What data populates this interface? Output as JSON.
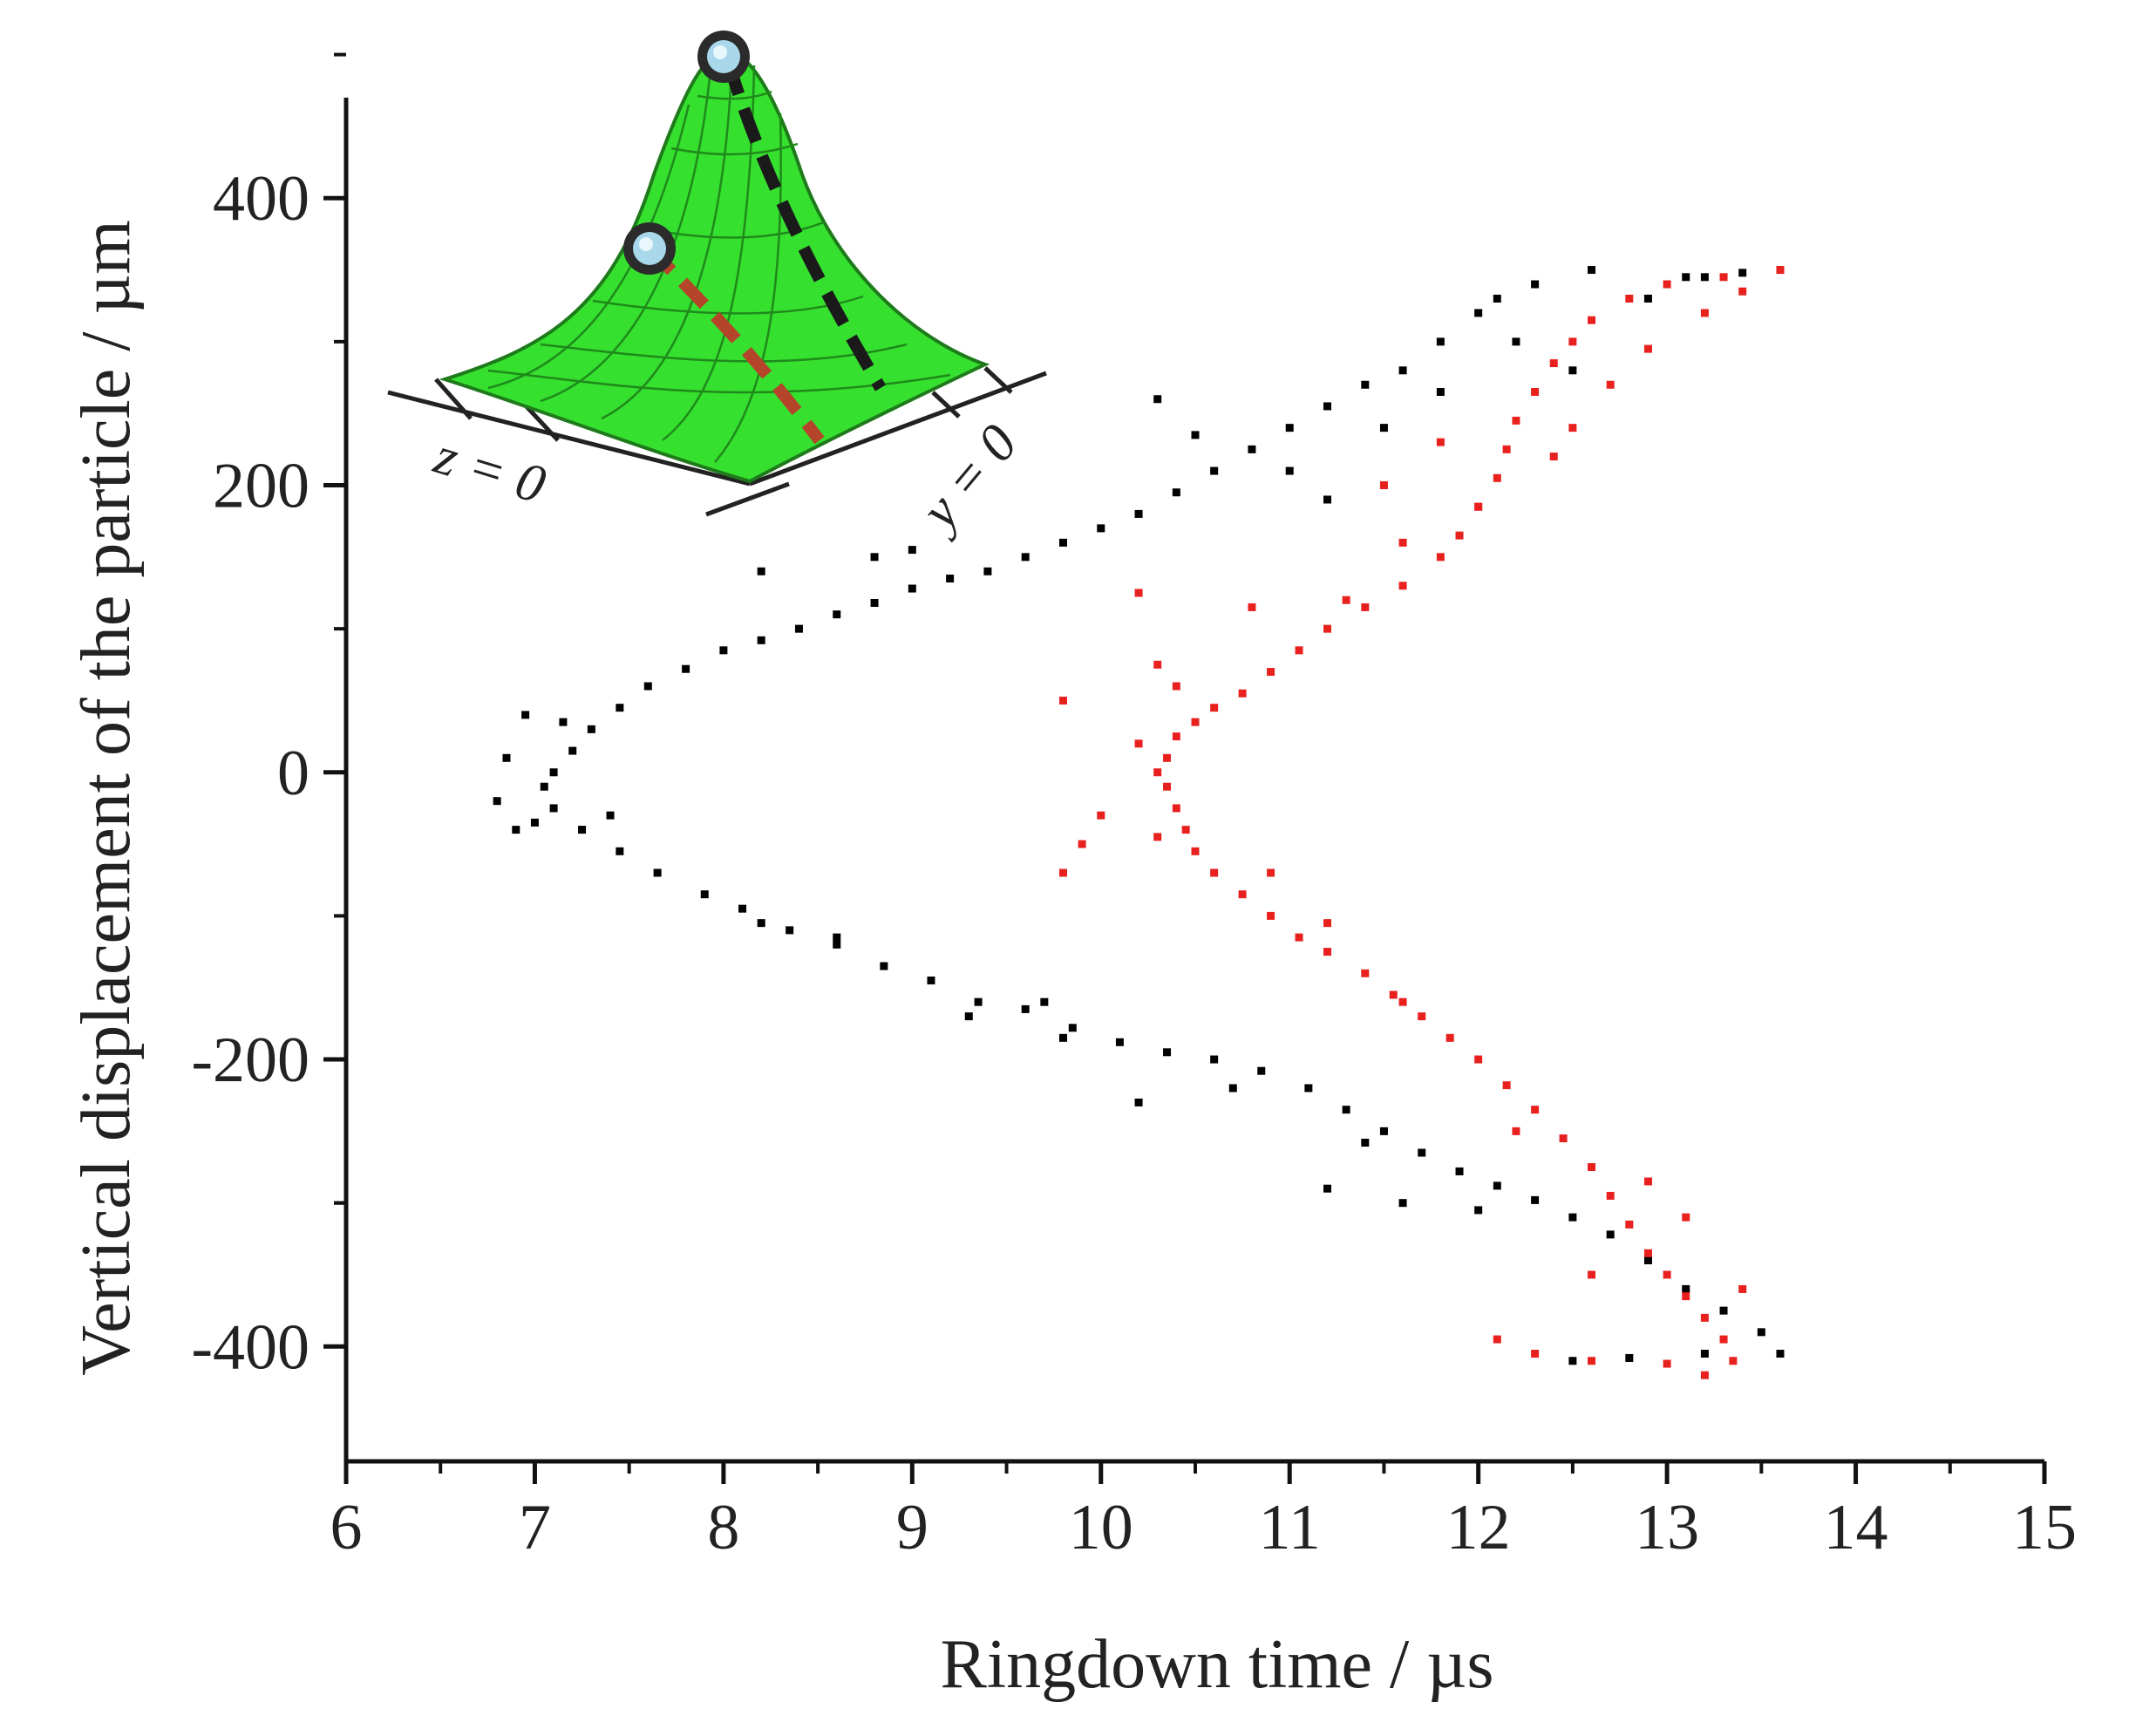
{
  "chart_data": {
    "type": "scatter",
    "title": "",
    "xlabel": "Ringdown time / µs",
    "ylabel": "Vertical displacement of the particle / µm",
    "xlim": [
      6,
      15
    ],
    "ylim": [
      -480,
      470
    ],
    "x_ticks": [
      6,
      7,
      8,
      9,
      10,
      11,
      12,
      13,
      14,
      15
    ],
    "y_ticks": [
      -400,
      -200,
      0,
      200,
      400
    ],
    "grid": false,
    "legend": "none",
    "series": [
      {
        "color": "#000000",
        "marker": "square/triangle",
        "points": [
          [
            13.6,
            350
          ],
          [
            13.4,
            348
          ],
          [
            13.2,
            345
          ],
          [
            12.6,
            350
          ],
          [
            12.3,
            340
          ],
          [
            12.1,
            330
          ],
          [
            12.0,
            320
          ],
          [
            11.8,
            300
          ],
          [
            11.6,
            280
          ],
          [
            11.4,
            270
          ],
          [
            11.2,
            255
          ],
          [
            11.0,
            240
          ],
          [
            10.8,
            225
          ],
          [
            10.6,
            210
          ],
          [
            10.4,
            195
          ],
          [
            10.2,
            180
          ],
          [
            10.0,
            170
          ],
          [
            9.8,
            160
          ],
          [
            9.6,
            150
          ],
          [
            9.4,
            140
          ],
          [
            9.2,
            135
          ],
          [
            9.0,
            128
          ],
          [
            8.8,
            118
          ],
          [
            8.6,
            110
          ],
          [
            8.4,
            100
          ],
          [
            8.2,
            92
          ],
          [
            8.0,
            85
          ],
          [
            7.8,
            72
          ],
          [
            7.6,
            60
          ],
          [
            7.45,
            45
          ],
          [
            7.3,
            30
          ],
          [
            7.2,
            15
          ],
          [
            7.1,
            0
          ],
          [
            7.05,
            -10
          ],
          [
            7.1,
            -25
          ],
          [
            7.25,
            -40
          ],
          [
            7.45,
            -55
          ],
          [
            7.65,
            -70
          ],
          [
            7.9,
            -85
          ],
          [
            8.1,
            -95
          ],
          [
            8.35,
            -110
          ],
          [
            8.6,
            -120
          ],
          [
            8.85,
            -135
          ],
          [
            9.1,
            -145
          ],
          [
            9.35,
            -160
          ],
          [
            9.6,
            -165
          ],
          [
            9.85,
            -178
          ],
          [
            10.1,
            -188
          ],
          [
            10.35,
            -195
          ],
          [
            10.6,
            -200
          ],
          [
            10.85,
            -208
          ],
          [
            11.1,
            -220
          ],
          [
            11.3,
            -235
          ],
          [
            11.5,
            -250
          ],
          [
            11.7,
            -265
          ],
          [
            11.9,
            -278
          ],
          [
            12.1,
            -288
          ],
          [
            12.3,
            -298
          ],
          [
            12.5,
            -310
          ],
          [
            12.7,
            -322
          ],
          [
            12.9,
            -340
          ],
          [
            13.1,
            -360
          ],
          [
            13.3,
            -375
          ],
          [
            13.5,
            -390
          ],
          [
            13.6,
            -405
          ],
          [
            13.2,
            -405
          ],
          [
            12.8,
            -408
          ],
          [
            12.5,
            -410
          ],
          [
            11.6,
            -300
          ],
          [
            11.2,
            -290
          ],
          [
            10.2,
            -230
          ],
          [
            9.7,
            -160
          ],
          [
            9.3,
            -170
          ],
          [
            8.6,
            -115
          ],
          [
            8.2,
            -105
          ],
          [
            7.4,
            -30
          ],
          [
            7.0,
            -35
          ],
          [
            6.9,
            -40
          ],
          [
            6.8,
            -20
          ],
          [
            6.85,
            10
          ],
          [
            6.95,
            40
          ],
          [
            7.15,
            35
          ],
          [
            8.8,
            150
          ],
          [
            9.0,
            155
          ],
          [
            8.2,
            140
          ],
          [
            10.3,
            260
          ],
          [
            10.5,
            235
          ],
          [
            11.0,
            210
          ],
          [
            11.2,
            190
          ],
          [
            11.5,
            240
          ],
          [
            11.8,
            265
          ],
          [
            12.2,
            300
          ],
          [
            12.5,
            280
          ],
          [
            12.9,
            330
          ],
          [
            13.1,
            345
          ],
          [
            9.8,
            -185
          ],
          [
            10.7,
            -220
          ],
          [
            11.4,
            -258
          ],
          [
            12.0,
            -305
          ]
        ]
      },
      {
        "color": "#e8211f",
        "marker": "square",
        "points": [
          [
            13.6,
            350
          ],
          [
            13.3,
            345
          ],
          [
            13.0,
            340
          ],
          [
            12.8,
            330
          ],
          [
            12.6,
            315
          ],
          [
            12.5,
            300
          ],
          [
            12.4,
            285
          ],
          [
            12.3,
            265
          ],
          [
            12.2,
            245
          ],
          [
            12.15,
            225
          ],
          [
            12.1,
            205
          ],
          [
            12.0,
            185
          ],
          [
            11.9,
            165
          ],
          [
            11.8,
            150
          ],
          [
            11.6,
            130
          ],
          [
            11.4,
            115
          ],
          [
            11.2,
            100
          ],
          [
            11.05,
            85
          ],
          [
            10.9,
            70
          ],
          [
            10.75,
            55
          ],
          [
            10.6,
            45
          ],
          [
            10.5,
            35
          ],
          [
            10.4,
            25
          ],
          [
            10.35,
            10
          ],
          [
            10.3,
            0
          ],
          [
            10.35,
            -10
          ],
          [
            10.4,
            -25
          ],
          [
            10.45,
            -40
          ],
          [
            10.5,
            -55
          ],
          [
            10.6,
            -70
          ],
          [
            10.75,
            -85
          ],
          [
            10.9,
            -100
          ],
          [
            11.05,
            -115
          ],
          [
            11.2,
            -125
          ],
          [
            11.4,
            -140
          ],
          [
            11.55,
            -155
          ],
          [
            11.7,
            -170
          ],
          [
            11.85,
            -185
          ],
          [
            12.0,
            -200
          ],
          [
            12.15,
            -218
          ],
          [
            12.3,
            -235
          ],
          [
            12.45,
            -255
          ],
          [
            12.6,
            -275
          ],
          [
            12.7,
            -295
          ],
          [
            12.8,
            -315
          ],
          [
            12.9,
            -335
          ],
          [
            13.0,
            -350
          ],
          [
            13.1,
            -365
          ],
          [
            13.2,
            -380
          ],
          [
            13.3,
            -395
          ],
          [
            13.35,
            -410
          ],
          [
            13.2,
            -420
          ],
          [
            13.0,
            -412
          ],
          [
            12.6,
            -410
          ],
          [
            12.3,
            -405
          ],
          [
            12.1,
            -395
          ],
          [
            12.6,
            -350
          ],
          [
            13.4,
            -360
          ],
          [
            13.1,
            -310
          ],
          [
            12.9,
            -285
          ],
          [
            12.2,
            -250
          ],
          [
            11.6,
            -160
          ],
          [
            11.2,
            -105
          ],
          [
            10.9,
            -70
          ],
          [
            10.3,
            -45
          ],
          [
            9.9,
            -50
          ],
          [
            9.8,
            -70
          ],
          [
            10.0,
            -30
          ],
          [
            10.2,
            20
          ],
          [
            10.4,
            60
          ],
          [
            10.3,
            75
          ],
          [
            9.8,
            50
          ],
          [
            10.2,
            125
          ],
          [
            10.8,
            115
          ],
          [
            11.3,
            120
          ],
          [
            11.6,
            160
          ],
          [
            12.0,
            185
          ],
          [
            12.4,
            220
          ],
          [
            12.5,
            240
          ],
          [
            12.7,
            270
          ],
          [
            12.9,
            295
          ],
          [
            13.2,
            320
          ],
          [
            13.4,
            335
          ],
          [
            11.5,
            200
          ],
          [
            11.8,
            230
          ]
        ]
      }
    ],
    "inset": {
      "labels": [
        "z = 0",
        "y = 0"
      ]
    }
  }
}
